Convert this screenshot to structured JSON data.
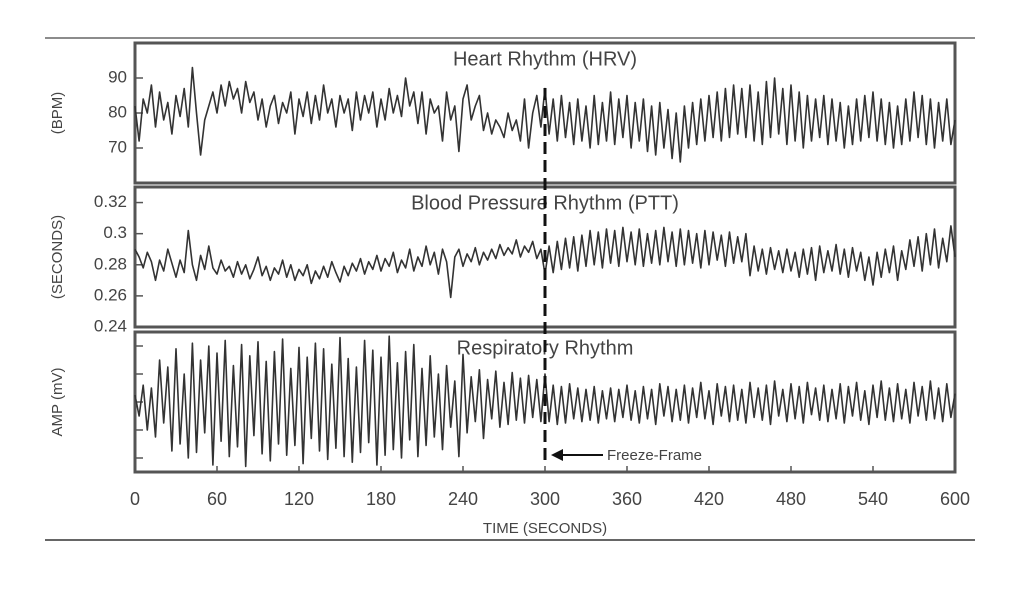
{
  "chart_data": {
    "type": "line",
    "xlabel": "TIME (SECONDS)",
    "xlim": [
      0,
      600
    ],
    "xticks": [
      0,
      60,
      120,
      180,
      240,
      300,
      360,
      420,
      480,
      540,
      600
    ],
    "annotation": "Freeze-Frame",
    "marker_x": 300,
    "color": "#333333",
    "x": [
      0,
      3,
      6,
      9,
      12,
      15,
      18,
      21,
      24,
      27,
      30,
      33,
      36,
      39,
      42,
      45,
      48,
      51,
      54,
      57,
      60,
      63,
      66,
      69,
      72,
      75,
      78,
      81,
      84,
      87,
      90,
      93,
      96,
      99,
      102,
      105,
      108,
      111,
      114,
      117,
      120,
      123,
      126,
      129,
      132,
      135,
      138,
      141,
      144,
      147,
      150,
      153,
      156,
      159,
      162,
      165,
      168,
      171,
      174,
      177,
      180,
      183,
      186,
      189,
      192,
      195,
      198,
      201,
      204,
      207,
      210,
      213,
      216,
      219,
      222,
      225,
      228,
      231,
      234,
      237,
      240,
      243,
      246,
      249,
      252,
      255,
      258,
      261,
      264,
      267,
      270,
      273,
      276,
      279,
      282,
      285,
      288,
      291,
      294,
      297,
      300,
      303,
      306,
      309,
      312,
      315,
      318,
      321,
      324,
      327,
      330,
      333,
      336,
      339,
      342,
      345,
      348,
      351,
      354,
      357,
      360,
      363,
      366,
      369,
      372,
      375,
      378,
      381,
      384,
      387,
      390,
      393,
      396,
      399,
      402,
      405,
      408,
      411,
      414,
      417,
      420,
      423,
      426,
      429,
      432,
      435,
      438,
      441,
      444,
      447,
      450,
      453,
      456,
      459,
      462,
      465,
      468,
      471,
      474,
      477,
      480,
      483,
      486,
      489,
      492,
      495,
      498,
      501,
      504,
      507,
      510,
      513,
      516,
      519,
      522,
      525,
      528,
      531,
      534,
      537,
      540,
      543,
      546,
      549,
      552,
      555,
      558,
      561,
      564,
      567,
      570,
      573,
      576,
      579,
      582,
      585,
      588,
      591,
      594,
      597,
      600
    ],
    "panels": [
      {
        "title": "Heart Rhythm (HRV)",
        "ylabel": "(BPM)",
        "ylim": [
          60,
          100
        ],
        "yticks": [
          70,
          80,
          90
        ],
        "tick_labels": true,
        "values": [
          82,
          72,
          84,
          80,
          88,
          76,
          86,
          78,
          83,
          74,
          85,
          79,
          87,
          76,
          93,
          80,
          68,
          78,
          82,
          86,
          80,
          88,
          82,
          89,
          84,
          87,
          80,
          89,
          83,
          86,
          78,
          84,
          76,
          82,
          85,
          77,
          83,
          80,
          86,
          74,
          84,
          79,
          86,
          77,
          85,
          78,
          88,
          80,
          84,
          76,
          85,
          80,
          84,
          75,
          86,
          78,
          85,
          80,
          86,
          76,
          84,
          78,
          87,
          80,
          85,
          79,
          90,
          82,
          86,
          77,
          86,
          74,
          84,
          80,
          82,
          72,
          86,
          78,
          82,
          69,
          84,
          88,
          78,
          82,
          85,
          75,
          80,
          74,
          78,
          76,
          73,
          80,
          75,
          78,
          72,
          84,
          70,
          80,
          85,
          76,
          87,
          74,
          84,
          72,
          85,
          73,
          83,
          71,
          84,
          72,
          82,
          70,
          85,
          71,
          83,
          72,
          86,
          71,
          84,
          73,
          85,
          70,
          83,
          72,
          84,
          69,
          82,
          68,
          83,
          70,
          81,
          67,
          80,
          66,
          82,
          70,
          83,
          71,
          84,
          72,
          85,
          73,
          86,
          72,
          87,
          73,
          88,
          74,
          87,
          73,
          88,
          72,
          86,
          71,
          89,
          73,
          90,
          74,
          87,
          71,
          88,
          72,
          86,
          70,
          85,
          72,
          84,
          73,
          85,
          71,
          84,
          72,
          83,
          70,
          82,
          71,
          84,
          72,
          85,
          73,
          86,
          72,
          84,
          71,
          83,
          70,
          82,
          71,
          84,
          72,
          86,
          73,
          85,
          71,
          84,
          70,
          83,
          72,
          84,
          71,
          78
        ]
      },
      {
        "title": "Blood Pressure Rhythm (PTT)",
        "ylabel": "(SECONDS)",
        "ylim": [
          0.24,
          0.33
        ],
        "yticks": [
          0.24,
          0.26,
          0.28,
          0.3,
          0.32
        ],
        "tick_labels": true,
        "values": [
          0.29,
          0.285,
          0.278,
          0.288,
          0.282,
          0.27,
          0.283,
          0.276,
          0.29,
          0.281,
          0.272,
          0.283,
          0.275,
          0.302,
          0.28,
          0.27,
          0.286,
          0.277,
          0.292,
          0.278,
          0.274,
          0.283,
          0.276,
          0.279,
          0.272,
          0.282,
          0.274,
          0.28,
          0.271,
          0.277,
          0.285,
          0.273,
          0.279,
          0.27,
          0.278,
          0.274,
          0.283,
          0.272,
          0.28,
          0.27,
          0.277,
          0.273,
          0.28,
          0.268,
          0.276,
          0.271,
          0.279,
          0.272,
          0.282,
          0.275,
          0.269,
          0.279,
          0.273,
          0.281,
          0.276,
          0.284,
          0.274,
          0.282,
          0.277,
          0.286,
          0.276,
          0.284,
          0.279,
          0.288,
          0.275,
          0.283,
          0.278,
          0.29,
          0.276,
          0.285,
          0.279,
          0.292,
          0.28,
          0.288,
          0.274,
          0.29,
          0.282,
          0.259,
          0.285,
          0.29,
          0.279,
          0.287,
          0.282,
          0.291,
          0.28,
          0.288,
          0.283,
          0.29,
          0.284,
          0.293,
          0.286,
          0.291,
          0.287,
          0.296,
          0.285,
          0.292,
          0.288,
          0.295,
          0.284,
          0.29,
          0.274,
          0.292,
          0.275,
          0.295,
          0.277,
          0.297,
          0.278,
          0.298,
          0.276,
          0.299,
          0.279,
          0.302,
          0.28,
          0.301,
          0.278,
          0.303,
          0.281,
          0.302,
          0.279,
          0.304,
          0.282,
          0.301,
          0.28,
          0.303,
          0.279,
          0.3,
          0.281,
          0.302,
          0.28,
          0.304,
          0.282,
          0.301,
          0.279,
          0.303,
          0.28,
          0.302,
          0.281,
          0.3,
          0.278,
          0.302,
          0.28,
          0.301,
          0.283,
          0.299,
          0.279,
          0.301,
          0.281,
          0.298,
          0.282,
          0.3,
          0.273,
          0.292,
          0.276,
          0.29,
          0.274,
          0.291,
          0.277,
          0.289,
          0.275,
          0.29,
          0.276,
          0.288,
          0.272,
          0.29,
          0.274,
          0.291,
          0.27,
          0.292,
          0.275,
          0.289,
          0.276,
          0.293,
          0.274,
          0.29,
          0.272,
          0.291,
          0.276,
          0.288,
          0.27,
          0.285,
          0.267,
          0.288,
          0.272,
          0.29,
          0.275,
          0.292,
          0.27,
          0.289,
          0.277,
          0.296,
          0.279,
          0.298,
          0.276,
          0.3,
          0.28,
          0.303,
          0.278,
          0.297,
          0.282,
          0.305,
          0.285
        ]
      },
      {
        "title": "Respiratory Rhythm",
        "ylabel": "AMP (mV)",
        "ylim": [
          -5,
          5
        ],
        "yticks": [
          -4,
          -2,
          0,
          2,
          4
        ],
        "tick_labels": false,
        "values": [
          0.5,
          -1,
          1.2,
          -2,
          1,
          -2.5,
          3,
          -1.5,
          2.5,
          -3.5,
          3.8,
          -3,
          2,
          -4,
          4.2,
          -3.6,
          3,
          -2.2,
          4,
          -4.5,
          3.5,
          -2.8,
          4.4,
          -3.9,
          2.6,
          -3.2,
          4.1,
          -4.6,
          3.3,
          -2.4,
          4.3,
          -3.7,
          2.9,
          -4.2,
          3.6,
          -3,
          4.5,
          -3.8,
          2.4,
          -3.1,
          3.9,
          -4.4,
          3.2,
          -2.6,
          4.2,
          -3.5,
          3.8,
          -4.1,
          2.7,
          -3.3,
          4.6,
          -3.9,
          3.1,
          -4.3,
          2.5,
          -3.6,
          4.4,
          -2.9,
          3.7,
          -4.5,
          3.2,
          -3.8,
          4.7,
          -3.4,
          2.8,
          -4,
          3.6,
          -2.7,
          4.1,
          -3.9,
          2.4,
          -3.1,
          3.3,
          -2.5,
          2,
          -3.4,
          2.6,
          -1.8,
          1.5,
          -3.9,
          3.4,
          -2.2,
          1.8,
          -1.4,
          2.3,
          -2.6,
          1.6,
          -1.2,
          2.2,
          -1.8,
          1.4,
          -1.6,
          2.1,
          -1.3,
          1.7,
          -1.5,
          1.9,
          -1.1,
          1.6,
          -1.4,
          2,
          -1.4,
          1.2,
          -1.6,
          1.1,
          -1.5,
          1.3,
          -1.2,
          1,
          -1.4,
          0.9,
          -1.3,
          1.1,
          -1.5,
          0.8,
          -1.2,
          1,
          -1.4,
          0.9,
          -1.1,
          1.2,
          -1.3,
          0.8,
          -1.5,
          1.1,
          -1.2,
          0.9,
          -1.6,
          1.3,
          -1,
          1.1,
          -1.4,
          0.9,
          -1.3,
          1.2,
          -1.5,
          1,
          -1.1,
          1.4,
          -1.2,
          0.8,
          -1.6,
          1.3,
          -1,
          1.1,
          -1.4,
          1.2,
          -1.3,
          0.9,
          -1.5,
          1.4,
          -1.1,
          1,
          -1.3,
          1.2,
          -1.6,
          1.5,
          -1,
          0.9,
          -1.4,
          1.3,
          -1.2,
          1.1,
          -1.5,
          1.4,
          -0.9,
          1,
          -1.3,
          1.2,
          -1.4,
          0.9,
          -1.2,
          1.3,
          -1.5,
          1.1,
          -1,
          1.4,
          -1.3,
          0.8,
          -1.6,
          1.2,
          -1.1,
          1.5,
          -1.3,
          1,
          -1.4,
          1.3,
          -1.2,
          0.9,
          -1.5,
          1.4,
          -1,
          1.1,
          -1.3,
          1.5,
          -1.2,
          1,
          -1.4,
          1.3,
          -1.1,
          0.6
        ]
      }
    ]
  }
}
